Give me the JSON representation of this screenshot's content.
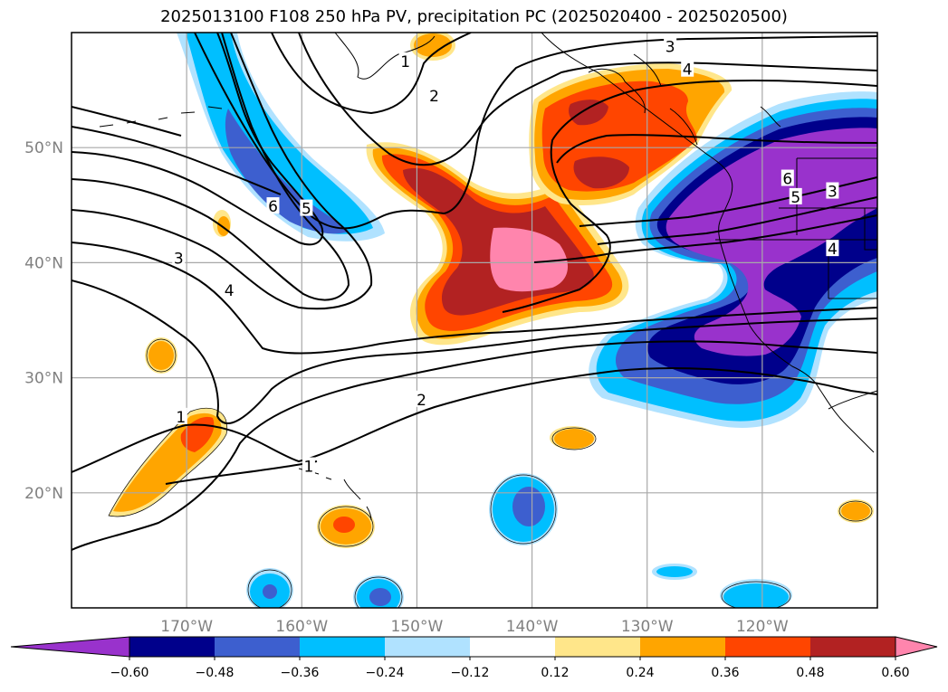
{
  "title": "2025013100 F108 250 hPa PV, precipitation PC (2025020400 - 2025020500)",
  "map": {
    "projection": "plate-carree",
    "lon_range": [
      -180,
      -110
    ],
    "lat_range": [
      10,
      60
    ],
    "lat_labels": [
      {
        "lat": 50,
        "text": "50°N"
      },
      {
        "lat": 40,
        "text": "40°N"
      },
      {
        "lat": 30,
        "text": "30°N"
      },
      {
        "lat": 20,
        "text": "20°N"
      }
    ],
    "lon_labels": [
      {
        "lon": -170,
        "text": "170°W"
      },
      {
        "lon": -160,
        "text": "160°W"
      },
      {
        "lon": -150,
        "text": "150°W"
      },
      {
        "lon": -140,
        "text": "140°W"
      },
      {
        "lon": -130,
        "text": "130°W"
      },
      {
        "lon": -120,
        "text": "120°W"
      }
    ],
    "gridlines": true
  },
  "pv_contour_labels": [
    {
      "text": "1",
      "lon": -151,
      "lat": 57.5
    },
    {
      "text": "2",
      "lon": -148.5,
      "lat": 54.5
    },
    {
      "text": "3",
      "lon": -128,
      "lat": 58.8
    },
    {
      "text": "4",
      "lon": -126.5,
      "lat": 56.8
    },
    {
      "text": "6",
      "lon": -162.5,
      "lat": 44.9
    },
    {
      "text": "5",
      "lon": -159.6,
      "lat": 44.7
    },
    {
      "text": "3",
      "lon": -170.7,
      "lat": 40.4
    },
    {
      "text": "4",
      "lon": -166.3,
      "lat": 37.6
    },
    {
      "text": "2",
      "lon": -149.6,
      "lat": 28.1
    },
    {
      "text": "1",
      "lon": -159.4,
      "lat": 22.3
    },
    {
      "text": "1",
      "lon": -170.5,
      "lat": 26.6
    },
    {
      "text": "6",
      "lon": -117.8,
      "lat": 47.3
    },
    {
      "text": "5",
      "lon": -117.1,
      "lat": 45.7
    },
    {
      "text": "3",
      "lon": -113.9,
      "lat": 46.2
    },
    {
      "text": "4",
      "lon": -113.9,
      "lat": 41.2
    }
  ],
  "colorbar": {
    "levels": [
      -0.6,
      -0.48,
      -0.36,
      -0.24,
      -0.12,
      0.12,
      0.24,
      0.36,
      0.48,
      0.6
    ],
    "tick_labels": [
      "−0.60",
      "−0.48",
      "−0.36",
      "−0.24",
      "−0.12",
      "0.12",
      "0.24",
      "0.36",
      "0.48",
      "0.60"
    ],
    "colors": [
      "#9932cc",
      "#00008b",
      "#3d5fcf",
      "#00bfff",
      "#b0e2ff",
      "#ffffff",
      "#ffe68a",
      "#ffa500",
      "#ff4500",
      "#b22222",
      "#ff85ad"
    ],
    "extend": "both"
  }
}
